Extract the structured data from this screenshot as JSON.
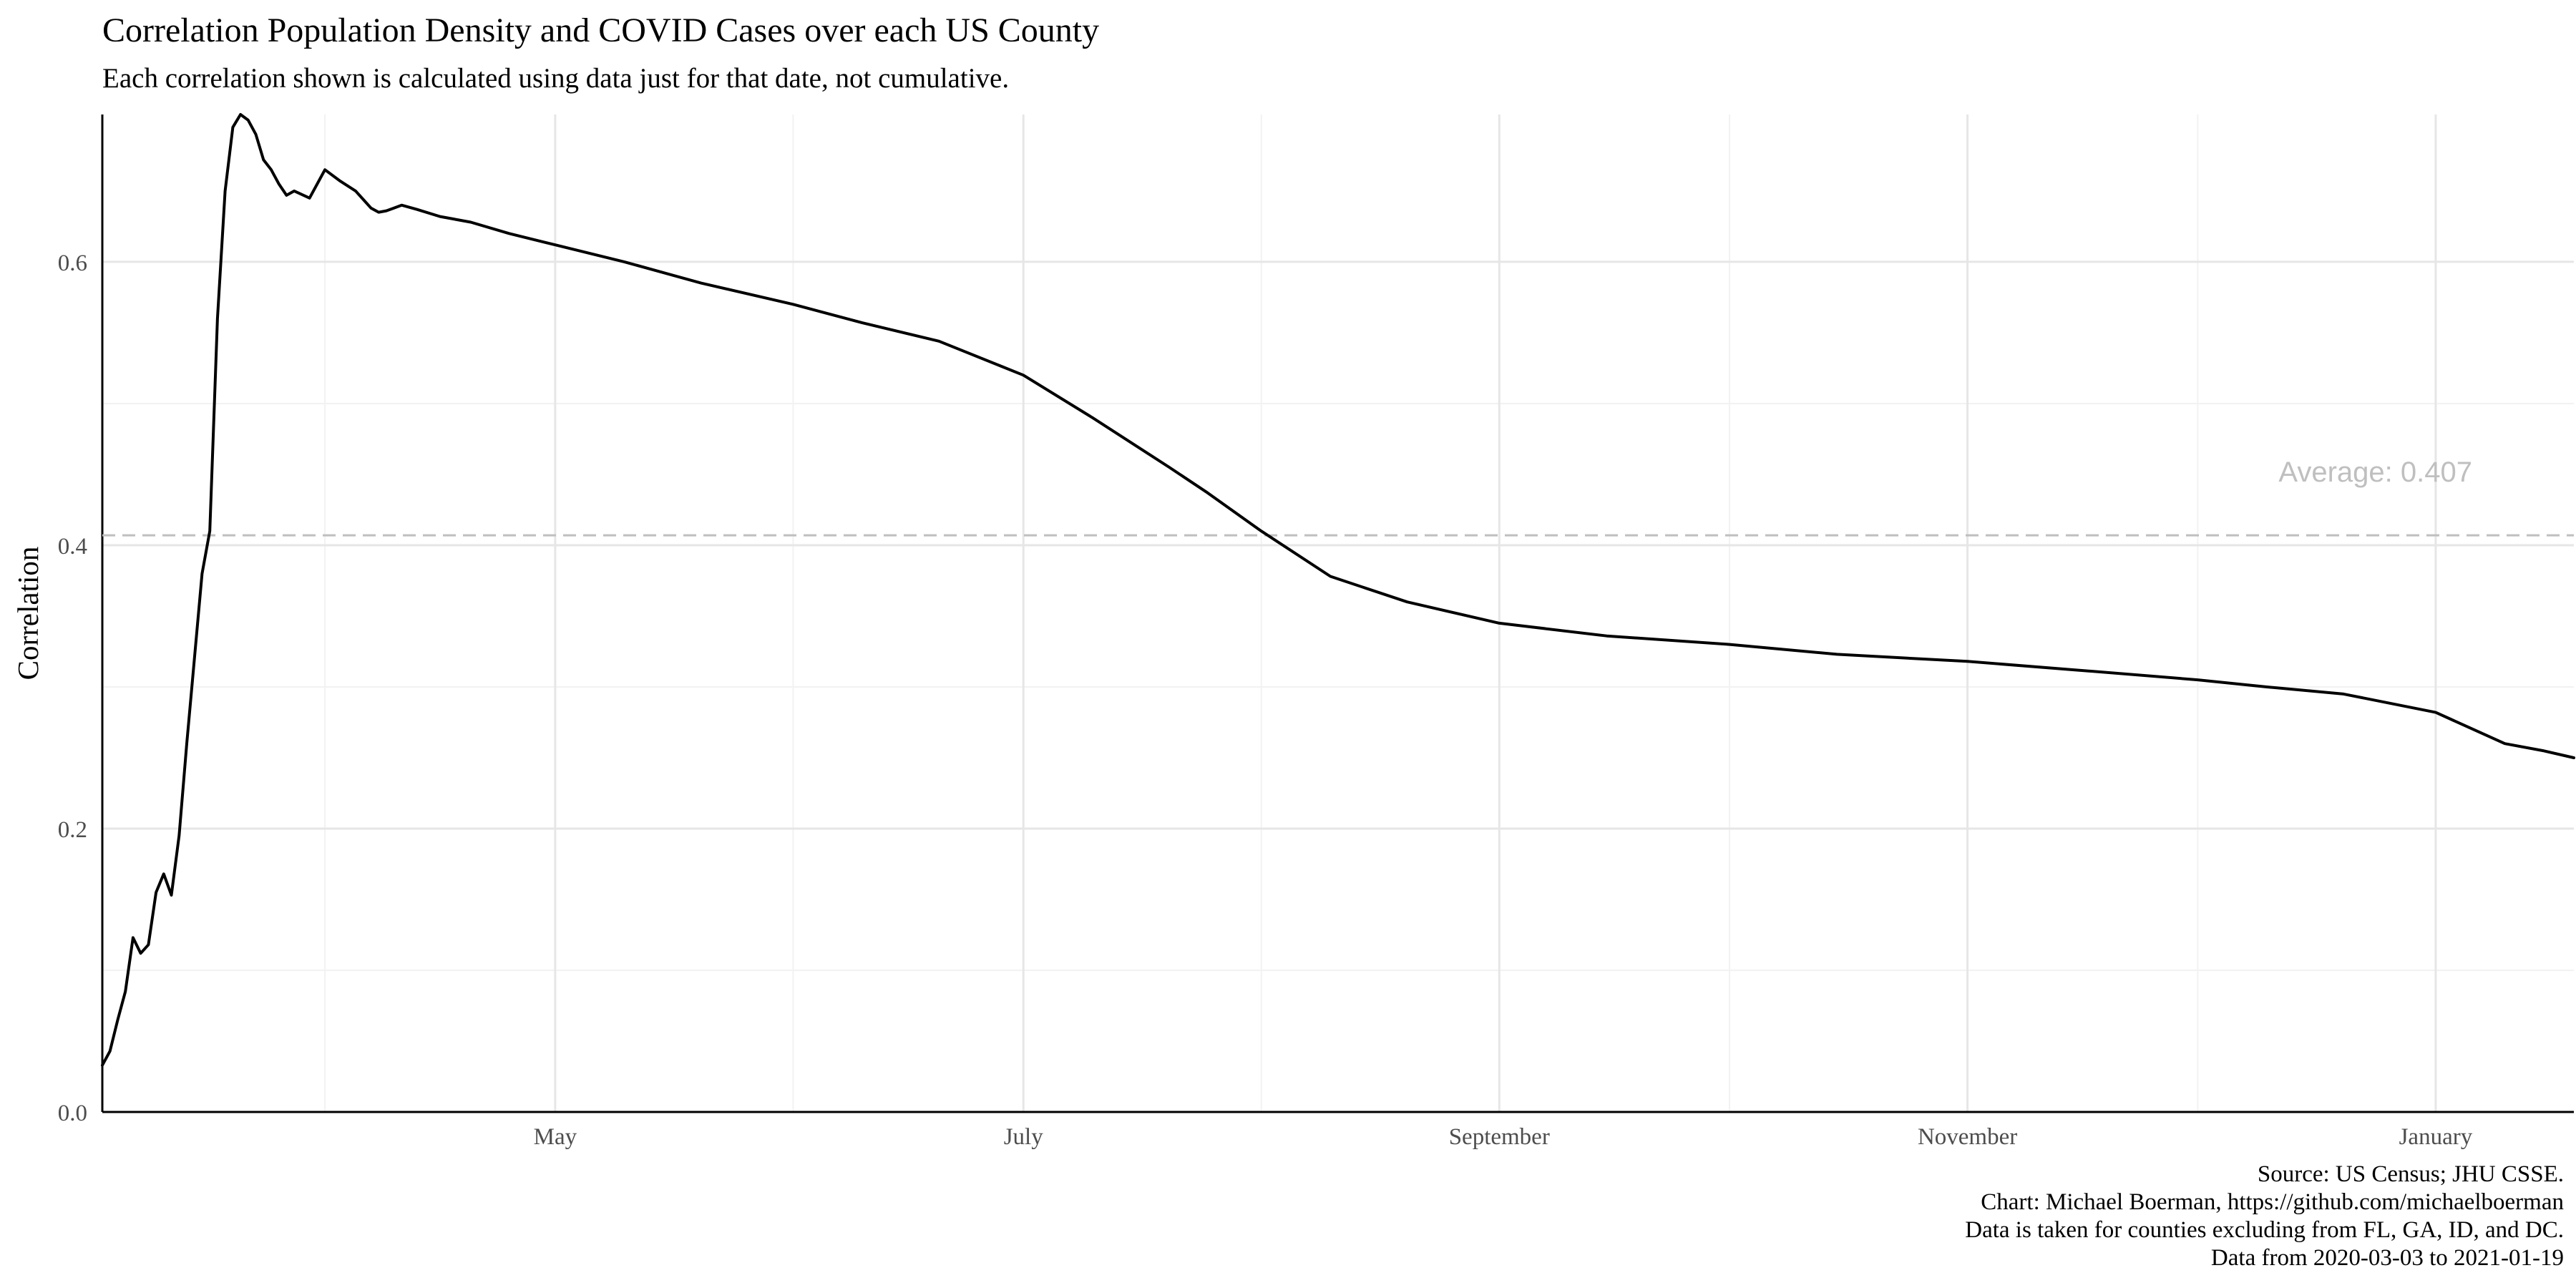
{
  "chart_data": {
    "type": "line",
    "title": "Correlation Population Density and COVID Cases over each US County",
    "subtitle": "Each correlation shown is calculated using data just for that date, not cumulative.",
    "xlabel": "",
    "ylabel": "Correlation",
    "xlim": [
      "2020-03-03",
      "2021-01-19"
    ],
    "ylim": [
      0,
      0.704
    ],
    "x_ticks": [
      {
        "date": "2020-05-01",
        "label": "May"
      },
      {
        "date": "2020-07-01",
        "label": "July"
      },
      {
        "date": "2020-09-01",
        "label": "September"
      },
      {
        "date": "2020-11-01",
        "label": "November"
      },
      {
        "date": "2021-01-01",
        "label": "January"
      }
    ],
    "x_minor_ticks": [
      "2020-04-01",
      "2020-06-01",
      "2020-08-01",
      "2020-10-01",
      "2020-12-01"
    ],
    "y_ticks": [
      0.0,
      0.2,
      0.4,
      0.6
    ],
    "y_tick_labels": [
      "0.0",
      "0.2",
      "0.4",
      "0.6"
    ],
    "y_minor_ticks": [
      0.1,
      0.3,
      0.5
    ],
    "grid": true,
    "line_color": "#000000",
    "reference_line": {
      "value": 0.407,
      "label": "Average: 0.407",
      "color": "#bfbfbf",
      "style": "dashed"
    },
    "series": [
      {
        "x": [
          "2020-03-03",
          "2020-03-04",
          "2020-03-05",
          "2020-03-06",
          "2020-03-07",
          "2020-03-08",
          "2020-03-09",
          "2020-03-10",
          "2020-03-11",
          "2020-03-12",
          "2020-03-13",
          "2020-03-14",
          "2020-03-15",
          "2020-03-16",
          "2020-03-17",
          "2020-03-18",
          "2020-03-19",
          "2020-03-20",
          "2020-03-21",
          "2020-03-22",
          "2020-03-23",
          "2020-03-24",
          "2020-03-25",
          "2020-03-26",
          "2020-03-27",
          "2020-03-28",
          "2020-03-30",
          "2020-04-01",
          "2020-04-03",
          "2020-04-05",
          "2020-04-07",
          "2020-04-08",
          "2020-04-09",
          "2020-04-10",
          "2020-04-11",
          "2020-04-13",
          "2020-04-16",
          "2020-04-20",
          "2020-04-25",
          "2020-05-01",
          "2020-05-10",
          "2020-05-20",
          "2020-06-01",
          "2020-06-10",
          "2020-06-20",
          "2020-07-01",
          "2020-07-10",
          "2020-07-20",
          "2020-07-25",
          "2020-08-01",
          "2020-08-10",
          "2020-08-20",
          "2020-09-01",
          "2020-09-15",
          "2020-10-01",
          "2020-10-15",
          "2020-11-01",
          "2020-11-15",
          "2020-12-01",
          "2020-12-10",
          "2020-12-20",
          "2021-01-01",
          "2021-01-10",
          "2021-01-15",
          "2021-01-19"
        ],
        "values": [
          0.033,
          0.043,
          0.065,
          0.085,
          0.123,
          0.112,
          0.118,
          0.155,
          0.168,
          0.153,
          0.195,
          0.26,
          0.32,
          0.38,
          0.41,
          0.56,
          0.65,
          0.695,
          0.704,
          0.7,
          0.69,
          0.672,
          0.665,
          0.655,
          0.647,
          0.65,
          0.645,
          0.665,
          0.657,
          0.65,
          0.638,
          0.635,
          0.636,
          0.638,
          0.64,
          0.637,
          0.632,
          0.628,
          0.62,
          0.612,
          0.6,
          0.585,
          0.57,
          0.557,
          0.544,
          0.52,
          0.49,
          0.455,
          0.437,
          0.41,
          0.378,
          0.36,
          0.345,
          0.336,
          0.33,
          0.323,
          0.318,
          0.312,
          0.305,
          0.3,
          0.295,
          0.282,
          0.26,
          0.255,
          0.25
        ]
      }
    ]
  },
  "caption": {
    "lines": [
      "Source: US Census; JHU CSSE.",
      "Chart: Michael Boerman, https://github.com/michaelboerman",
      "Data is taken for counties excluding from FL, GA, ID, and DC.",
      "Data from 2020-03-03 to 2021-01-19"
    ]
  }
}
